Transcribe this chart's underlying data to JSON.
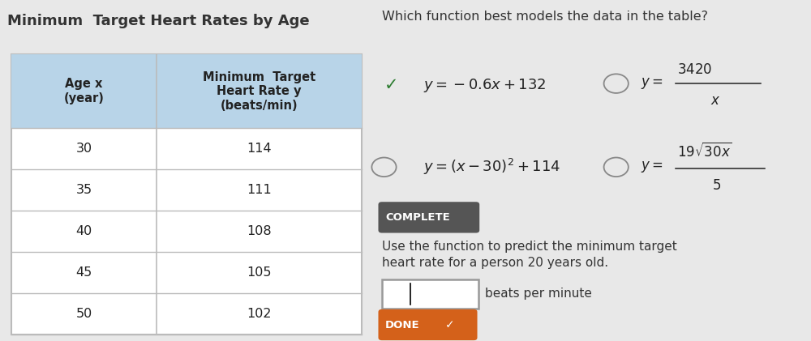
{
  "title": "Minimum  Target Heart Rates by Age",
  "table_header_col1": "Age x\n(year)",
  "table_header_col2": "Minimum  Target\nHeart Rate y\n(beats/min)",
  "table_data": [
    [
      30,
      114
    ],
    [
      35,
      111
    ],
    [
      40,
      108
    ],
    [
      45,
      105
    ],
    [
      50,
      102
    ]
  ],
  "header_bg": "#b8d4e8",
  "question_text": "Which function best models the data in the table?",
  "complete_label": "COMPLETE",
  "use_function_text": "Use the function to predict the minimum target\nheart rate for a person 20 years old.",
  "input_label": "beats per minute",
  "done_label": "DONE",
  "bg_color": "#e8e8e8",
  "panel_bg": "#f2f2f2",
  "table_bg": "white",
  "check_color": "#2e7d32",
  "circle_color": "#888888",
  "complete_bg": "#555555",
  "done_bg": "#d4611a"
}
